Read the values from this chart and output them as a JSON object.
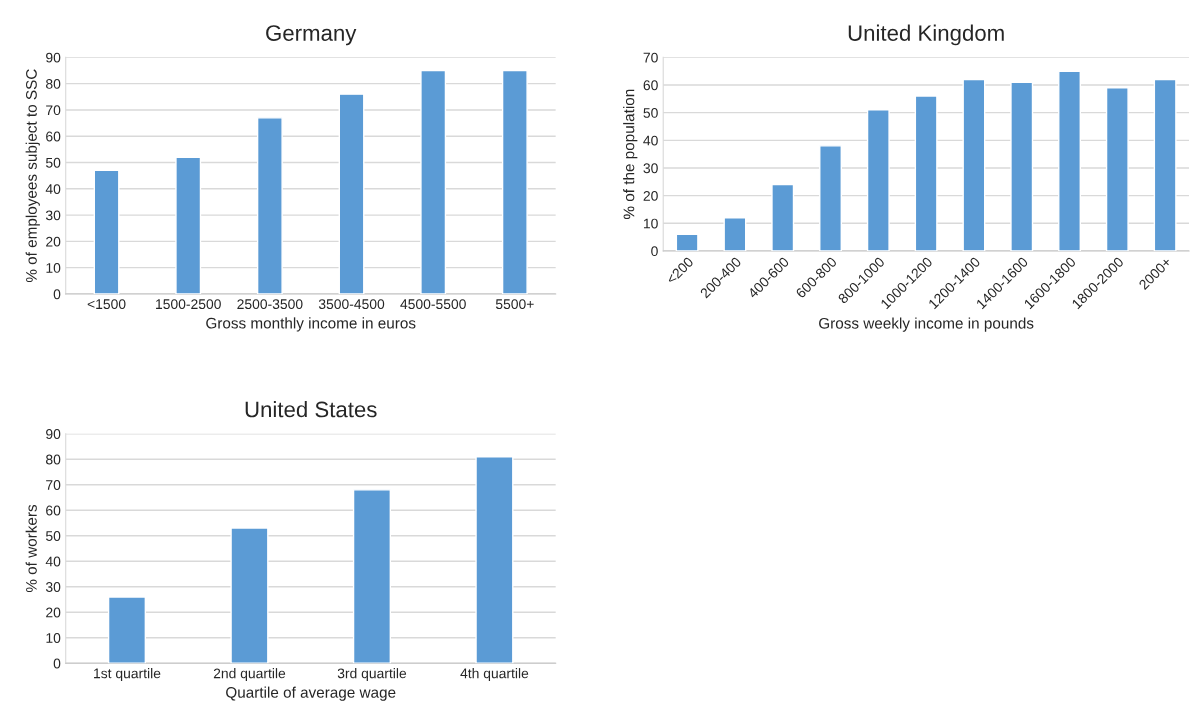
{
  "chart_data": [
    {
      "type": "bar",
      "title": "Germany",
      "xlabel": "Gross monthly income in euros",
      "ylabel": "% of employees subject to SSC",
      "categories": [
        "<1500",
        "1500-2500",
        "2500-3500",
        "3500-4500",
        "4500-5500",
        "5500+"
      ],
      "values": [
        47,
        52,
        67,
        76,
        85,
        85
      ],
      "color": "#5b9bd5",
      "ylim": [
        0,
        90
      ],
      "yticks": [
        0,
        10,
        20,
        30,
        40,
        50,
        60,
        70,
        80,
        90
      ],
      "grid": "y"
    },
    {
      "type": "bar",
      "title": "United Kingdom",
      "xlabel": "Gross weekly income in pounds",
      "ylabel": "% of the population",
      "categories": [
        "<200",
        "200-400",
        "400-600",
        "600-800",
        "800-1000",
        "1000-1200",
        "1200-1400",
        "1400-1600",
        "1600-1800",
        "1800-2000",
        "2000+"
      ],
      "values": [
        6,
        12,
        24,
        38,
        51,
        56,
        62,
        61,
        65,
        59,
        62
      ],
      "color": "#5b9bd5",
      "ylim": [
        0,
        70
      ],
      "yticks": [
        0,
        10,
        20,
        30,
        40,
        50,
        60,
        70
      ],
      "grid": "y"
    },
    {
      "type": "bar",
      "title": "United States",
      "xlabel": "Quartile of average wage",
      "ylabel": "% of workers",
      "categories": [
        "1st quartile",
        "2nd quartile",
        "3rd quartile",
        "4th quartile"
      ],
      "values": [
        26,
        53,
        68,
        81
      ],
      "color": "#5b9bd5",
      "ylim": [
        0,
        90
      ],
      "yticks": [
        0,
        10,
        20,
        30,
        40,
        50,
        60,
        70,
        80,
        90
      ],
      "grid": "y"
    }
  ]
}
